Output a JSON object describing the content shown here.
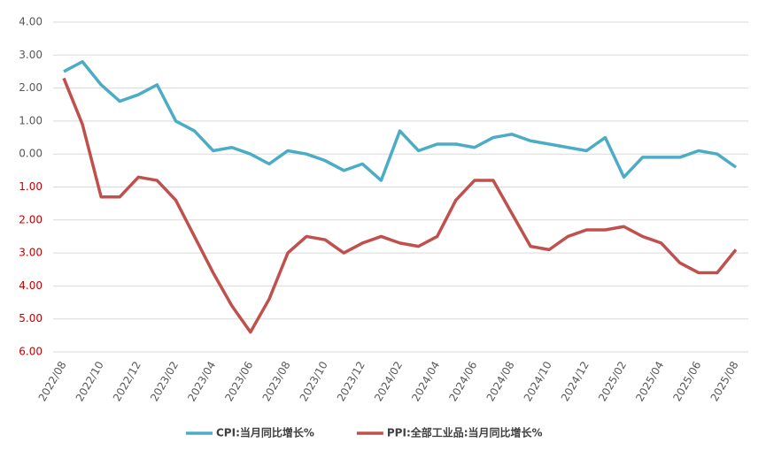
{
  "chart_data": {
    "type": "line",
    "categories": [
      "2022/08",
      null,
      "2022/10",
      null,
      "2022/12",
      null,
      "2023/02",
      null,
      "2023/04",
      null,
      "2023/06",
      null,
      "2023/08",
      null,
      "2023/10",
      null,
      "2023/12",
      null,
      "2024/02",
      null,
      "2024/04",
      null,
      "2024/06",
      null,
      "2024/08",
      null,
      "2024/10",
      null,
      "2024/12",
      null,
      "2025/02",
      null,
      "2025/04",
      null,
      "2025/06",
      null,
      "2025/08"
    ],
    "series": [
      {
        "name": "CPI:当月同比增长%",
        "color": "#4bacc6",
        "values": [
          2.5,
          2.8,
          2.1,
          1.6,
          1.8,
          2.1,
          1.0,
          0.7,
          0.1,
          0.2,
          0.0,
          -0.3,
          0.1,
          0.0,
          -0.2,
          -0.5,
          -0.3,
          -0.8,
          0.7,
          0.1,
          0.3,
          0.3,
          0.2,
          0.5,
          0.6,
          0.4,
          0.3,
          0.2,
          0.1,
          0.5,
          -0.7,
          -0.1,
          -0.1,
          -0.1,
          0.1,
          0.0,
          -0.4
        ]
      },
      {
        "name": "PPI:全部工业品:当月同比增长%",
        "color": "#c0504d",
        "values": [
          2.3,
          0.9,
          -1.3,
          -1.3,
          -0.7,
          -0.8,
          -1.4,
          -2.5,
          -3.6,
          -4.6,
          -5.4,
          -4.4,
          -3.0,
          -2.5,
          -2.6,
          -3.0,
          -2.7,
          -2.5,
          -2.7,
          -2.8,
          -2.5,
          -1.4,
          -0.8,
          -0.8,
          -1.8,
          -2.8,
          -2.9,
          -2.5,
          -2.3,
          -2.3,
          -2.2,
          -2.5,
          -2.7,
          -3.3,
          -3.6,
          -3.6,
          -2.9
        ]
      }
    ],
    "ylim": [
      -6,
      4
    ],
    "yticks": [
      {
        "value": 4,
        "label": "4.00"
      },
      {
        "value": 3,
        "label": "3.00"
      },
      {
        "value": 2,
        "label": "2.00"
      },
      {
        "value": 1,
        "label": "1.00"
      },
      {
        "value": 0,
        "label": "0.00"
      },
      {
        "value": -1,
        "label": "1.00"
      },
      {
        "value": -2,
        "label": "2.00"
      },
      {
        "value": -3,
        "label": "3.00"
      },
      {
        "value": -4,
        "label": "4.00"
      },
      {
        "value": -5,
        "label": "5.00"
      },
      {
        "value": -6,
        "label": "6.00"
      }
    ],
    "negative_tick_color": "#c00000",
    "grid": true,
    "legend": "bottom"
  }
}
